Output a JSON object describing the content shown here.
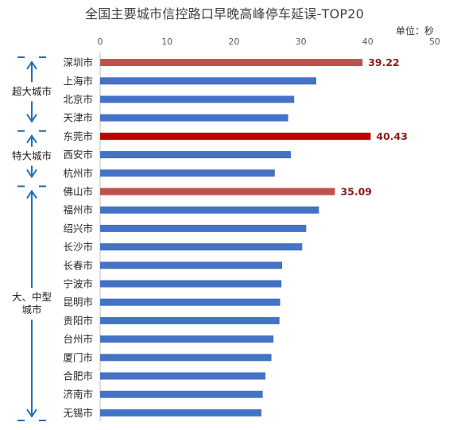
{
  "title": "全国主要城市信控路口早晚高峰停车延误-TOP20",
  "unit_label": "单位：秒",
  "colors": {
    "default": "#4472c4",
    "highlight": "#c0504d",
    "highlight_dark": "#c00000",
    "group_arrow": "#1f6fb5",
    "label": "#a31515"
  },
  "groups": [
    {
      "label_lines": [
        "超大城市"
      ],
      "from": 0,
      "to": 3
    },
    {
      "label_lines": [
        "特大城市"
      ],
      "from": 4,
      "to": 6
    },
    {
      "label_lines": [
        "大、中型",
        "城市"
      ],
      "from": 7,
      "to": 19
    }
  ],
  "chart_data": {
    "type": "bar",
    "orientation": "horizontal",
    "title": "全国主要城市信控路口早晚高峰停车延误-TOP20",
    "unit": "单位：秒",
    "xlim": [
      0,
      50
    ],
    "xticks": [
      0,
      10,
      20,
      30,
      40,
      50
    ],
    "categories": [
      "深圳市",
      "上海市",
      "北京市",
      "天津市",
      "东莞市",
      "西安市",
      "杭州市",
      "佛山市",
      "福州市",
      "绍兴市",
      "长沙市",
      "长春市",
      "宁波市",
      "昆明市",
      "贵阳市",
      "台州市",
      "厦门市",
      "合肥市",
      "济南市",
      "无锡市"
    ],
    "values": [
      39.22,
      32.3,
      29.0,
      28.1,
      40.43,
      28.5,
      26.1,
      35.09,
      32.7,
      30.8,
      30.2,
      27.2,
      27.1,
      26.9,
      26.8,
      25.9,
      25.6,
      24.7,
      24.3,
      24.1
    ],
    "highlight": {
      "0": "highlight",
      "4": "highlight_dark",
      "7": "highlight"
    },
    "data_labels": {
      "0": "39.22",
      "4": "40.43",
      "7": "35.09"
    },
    "grid": false
  }
}
